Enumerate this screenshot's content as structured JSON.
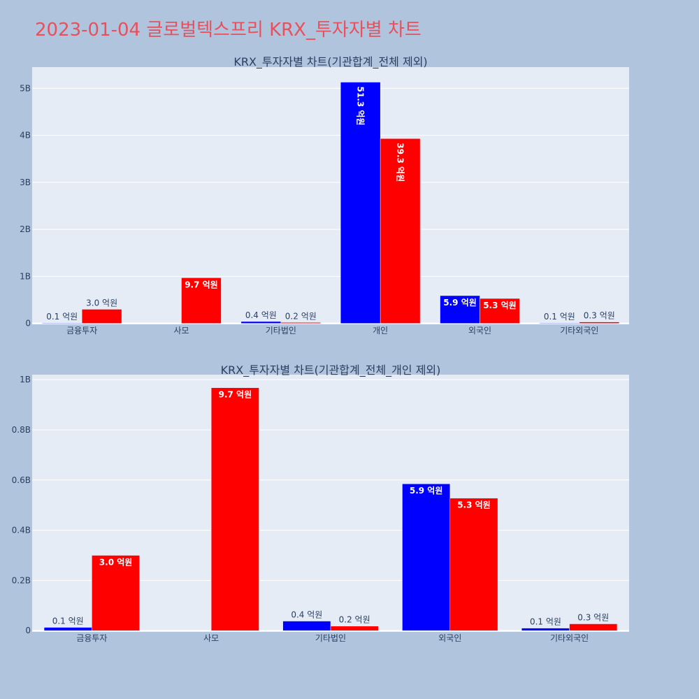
{
  "page": {
    "title": "2023-01-04 글로벌텍스프리 KRX_투자자별 차트"
  },
  "colors": {
    "page_background": "#b0c4de",
    "plot_background": "#e5ecf6",
    "title": "#e8505b",
    "text": "#2a3f5f",
    "grid": "#ffffff",
    "buy": "#0000ff",
    "sell": "#ff0000"
  },
  "chart_data": [
    {
      "type": "bar",
      "title": "KRX_투자자별 차트(기관합계_전체 제외)",
      "categories": [
        "금융투자",
        "사모",
        "기타법인",
        "개인",
        "외국인",
        "기타외국인"
      ],
      "yticks": [
        {
          "value": 0,
          "label": "0"
        },
        {
          "value": 1000000000,
          "label": "1B"
        },
        {
          "value": 2000000000,
          "label": "2B"
        },
        {
          "value": 3000000000,
          "label": "3B"
        },
        {
          "value": 4000000000,
          "label": "4B"
        },
        {
          "value": 5000000000,
          "label": "5B"
        }
      ],
      "ylim": [
        -20000000,
        5450000000
      ],
      "grid": true,
      "series": [
        {
          "color": "#0000ff",
          "values": [
            10000000,
            0,
            40000000,
            5130000000,
            590000000,
            10000000
          ],
          "labels": [
            "0.1 억원",
            "",
            "0.4 억원",
            "51.3 억원",
            "5.9 억원",
            "0.1 억원"
          ],
          "label_pos": [
            "outside",
            "none",
            "outside",
            "inside-vertical",
            "inside",
            "outside"
          ]
        },
        {
          "color": "#ff0000",
          "values": [
            300000000,
            970000000,
            20000000,
            3930000000,
            530000000,
            30000000
          ],
          "labels": [
            "3.0 억원",
            "9.7 억원",
            "0.2 억원",
            "39.3 억원",
            "5.3 억원",
            "0.3 억원"
          ],
          "label_pos": [
            "outside",
            "inside",
            "outside",
            "inside-vertical",
            "inside",
            "outside"
          ]
        }
      ]
    },
    {
      "type": "bar",
      "title": "KRX_투자자별 차트(기관합계_전체_개인 제외)",
      "categories": [
        "금융투자",
        "사모",
        "기타법인",
        "외국인",
        "기타외국인"
      ],
      "yticks": [
        {
          "value": 0,
          "label": "0"
        },
        {
          "value": 200000000,
          "label": "0.2B"
        },
        {
          "value": 400000000,
          "label": "0.4B"
        },
        {
          "value": 600000000,
          "label": "0.6B"
        },
        {
          "value": 800000000,
          "label": "0.8B"
        },
        {
          "value": 1000000000,
          "label": "1B"
        }
      ],
      "ylim": [
        -5000000,
        1020000000
      ],
      "grid": true,
      "series": [
        {
          "color": "#0000ff",
          "values": [
            13000000,
            0,
            38000000,
            585000000,
            10000000
          ],
          "labels": [
            "0.1 억원",
            "",
            "0.4 억원",
            "5.9 억원",
            "0.1 억원"
          ],
          "label_pos": [
            "outside",
            "none",
            "outside",
            "inside",
            "outside"
          ]
        },
        {
          "color": "#ff0000",
          "values": [
            300000000,
            968000000,
            18000000,
            528000000,
            27000000
          ],
          "labels": [
            "3.0 억원",
            "9.7 억원",
            "0.2 억원",
            "5.3 억원",
            "0.3 억원"
          ],
          "label_pos": [
            "inside",
            "inside",
            "outside",
            "inside",
            "outside"
          ]
        }
      ]
    }
  ]
}
